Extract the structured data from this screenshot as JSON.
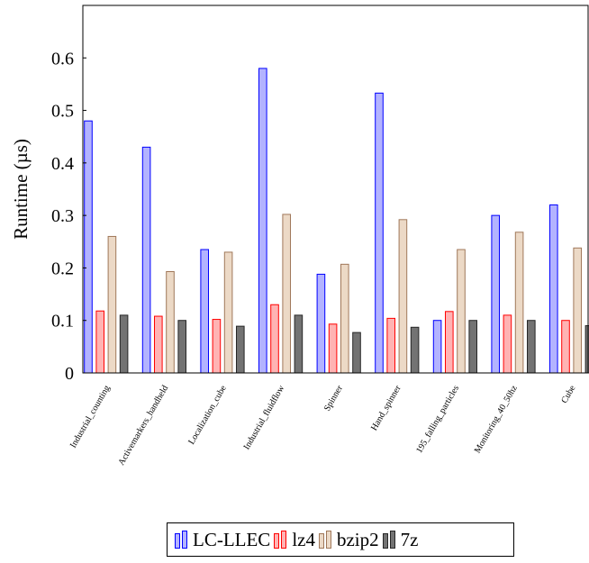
{
  "chart_data": {
    "type": "bar",
    "title": "",
    "xlabel": "",
    "ylabel": "Runtime (µs)",
    "ylim": [
      0,
      0.7
    ],
    "yticks": [
      "0",
      "0.1",
      "0.2",
      "0.3",
      "0.4",
      "0.5",
      "0.6"
    ],
    "grid": false,
    "legend_position": "bottom",
    "categories": [
      "Industrial_counting",
      "Activemarkers_handheld",
      "Localization_cube",
      "Industrial_fluidflow",
      "Spinner",
      "Hand_spinner",
      "195_falling_particles",
      "Monitoring_40_50hz",
      "Cube"
    ],
    "series": [
      {
        "name": "LC-LLEC",
        "fill": "#b3b3ff",
        "stroke": "#0000ff",
        "values": [
          0.48,
          0.43,
          0.235,
          0.58,
          0.188,
          0.533,
          0.1,
          0.3,
          0.32
        ]
      },
      {
        "name": "lz4",
        "fill": "#ffb3b3",
        "stroke": "#ff0000",
        "values": [
          0.118,
          0.108,
          0.102,
          0.13,
          0.093,
          0.104,
          0.117,
          0.11,
          0.1
        ]
      },
      {
        "name": "bzip2",
        "fill": "#ecd9c6",
        "stroke": "#a0785a",
        "values": [
          0.26,
          0.193,
          0.23,
          0.302,
          0.207,
          0.292,
          0.235,
          0.268,
          0.238
        ]
      },
      {
        "name": "7z",
        "fill": "#737373",
        "stroke": "#262626",
        "values": [
          0.11,
          0.1,
          0.089,
          0.11,
          0.077,
          0.087,
          0.1,
          0.1,
          0.09
        ]
      }
    ]
  }
}
